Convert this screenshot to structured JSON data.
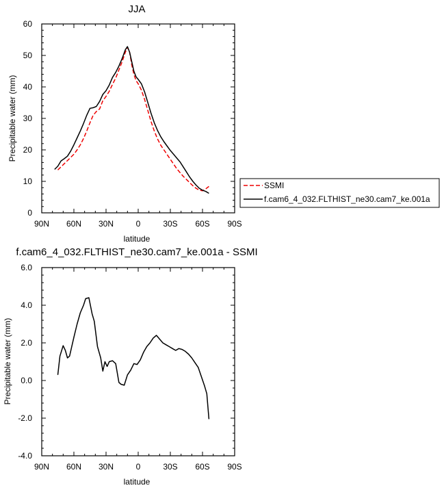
{
  "chart_data": [
    {
      "type": "line",
      "title": "JJA",
      "xlabel": "latitude",
      "ylabel": "Precipitable water (mm)",
      "xlim": [
        -90,
        90
      ],
      "ylim": [
        0,
        60
      ],
      "xticks": [
        {
          "v": -90,
          "label": "90N"
        },
        {
          "v": -60,
          "label": "60N"
        },
        {
          "v": -30,
          "label": "30N"
        },
        {
          "v": 0,
          "label": "0"
        },
        {
          "v": 30,
          "label": "30S"
        },
        {
          "v": 60,
          "label": "60S"
        },
        {
          "v": 90,
          "label": "90S"
        }
      ],
      "yticks": [
        {
          "v": 0,
          "label": "0"
        },
        {
          "v": 10,
          "label": "10"
        },
        {
          "v": 20,
          "label": "20"
        },
        {
          "v": 30,
          "label": "30"
        },
        {
          "v": 40,
          "label": "40"
        },
        {
          "v": 50,
          "label": "50"
        },
        {
          "v": 60,
          "label": "60"
        }
      ],
      "legend_position": "outside-right",
      "series": [
        {
          "name": "SSMI",
          "color": "#ee0000",
          "dash": true,
          "points": [
            [
              -75,
              13.6
            ],
            [
              -72,
              14.6
            ],
            [
              -69,
              15.6
            ],
            [
              -66,
              16.6
            ],
            [
              -63,
              17.6
            ],
            [
              -60,
              18.6
            ],
            [
              -57,
              20.0
            ],
            [
              -54,
              21.6
            ],
            [
              -51,
              23.6
            ],
            [
              -48,
              26.0
            ],
            [
              -45,
              28.6
            ],
            [
              -42,
              31.0
            ],
            [
              -39,
              32.2
            ],
            [
              -36,
              33.0
            ],
            [
              -33,
              35.6
            ],
            [
              -30,
              37.0
            ],
            [
              -27,
              38.6
            ],
            [
              -24,
              40.8
            ],
            [
              -21,
              42.8
            ],
            [
              -18,
              45.4
            ],
            [
              -15,
              48.0
            ],
            [
              -12,
              51.0
            ],
            [
              -10,
              52.6
            ],
            [
              -8,
              51.0
            ],
            [
              -6,
              47.0
            ],
            [
              -4,
              44.0
            ],
            [
              -2,
              42.0
            ],
            [
              0,
              41.0
            ],
            [
              3,
              39.0
            ],
            [
              6,
              36.0
            ],
            [
              9,
              32.5
            ],
            [
              12,
              29.0
            ],
            [
              15,
              26.0
            ],
            [
              18,
              23.5
            ],
            [
              21,
              21.5
            ],
            [
              24,
              20.0
            ],
            [
              27,
              18.5
            ],
            [
              30,
              17.0
            ],
            [
              33,
              15.5
            ],
            [
              36,
              14.0
            ],
            [
              39,
              12.8
            ],
            [
              42,
              11.6
            ],
            [
              45,
              10.6
            ],
            [
              48,
              9.6
            ],
            [
              51,
              8.6
            ],
            [
              54,
              7.8
            ],
            [
              57,
              7.2
            ],
            [
              60,
              7.0
            ],
            [
              63,
              7.6
            ],
            [
              66,
              8.4
            ]
          ]
        },
        {
          "name": "f.cam6_4_032.FLTHIST_ne30.cam7_ke.001a",
          "color": "#000000",
          "dash": false,
          "points": [
            [
              -78,
              13.8
            ],
            [
              -75,
              14.8
            ],
            [
              -72,
              16.5
            ],
            [
              -69,
              17.2
            ],
            [
              -66,
              18.0
            ],
            [
              -63,
              19.6
            ],
            [
              -60,
              21.6
            ],
            [
              -57,
              23.8
            ],
            [
              -54,
              26.0
            ],
            [
              -51,
              28.4
            ],
            [
              -48,
              31.0
            ],
            [
              -45,
              33.2
            ],
            [
              -42,
              33.4
            ],
            [
              -39,
              33.8
            ],
            [
              -36,
              35.4
            ],
            [
              -33,
              37.6
            ],
            [
              -30,
              38.8
            ],
            [
              -27,
              40.6
            ],
            [
              -24,
              43.0
            ],
            [
              -21,
              44.6
            ],
            [
              -18,
              46.6
            ],
            [
              -15,
              49.0
            ],
            [
              -12,
              51.8
            ],
            [
              -10,
              52.8
            ],
            [
              -8,
              51.0
            ],
            [
              -6,
              48.0
            ],
            [
              -4,
              45.0
            ],
            [
              -2,
              43.2
            ],
            [
              0,
              42.4
            ],
            [
              3,
              41.0
            ],
            [
              6,
              38.4
            ],
            [
              9,
              35.0
            ],
            [
              12,
              31.6
            ],
            [
              15,
              28.6
            ],
            [
              18,
              26.2
            ],
            [
              21,
              24.2
            ],
            [
              24,
              22.6
            ],
            [
              27,
              21.2
            ],
            [
              30,
              19.8
            ],
            [
              33,
              18.6
            ],
            [
              36,
              17.4
            ],
            [
              39,
              16.2
            ],
            [
              42,
              14.6
            ],
            [
              45,
              13.0
            ],
            [
              48,
              11.4
            ],
            [
              51,
              10.0
            ],
            [
              54,
              8.8
            ],
            [
              57,
              7.8
            ],
            [
              60,
              7.2
            ],
            [
              63,
              6.8
            ],
            [
              66,
              6.2
            ]
          ]
        }
      ]
    },
    {
      "type": "line",
      "title": "f.cam6_4_032.FLTHIST_ne30.cam7_ke.001a - SSMI",
      "xlabel": "latitude",
      "ylabel": "Precipitable water (mm)",
      "xlim": [
        -90,
        90
      ],
      "ylim": [
        -4,
        6
      ],
      "xticks": [
        {
          "v": -90,
          "label": "90N"
        },
        {
          "v": -60,
          "label": "60N"
        },
        {
          "v": -30,
          "label": "30N"
        },
        {
          "v": 0,
          "label": "0"
        },
        {
          "v": 30,
          "label": "30S"
        },
        {
          "v": 60,
          "label": "60S"
        },
        {
          "v": 90,
          "label": "90S"
        }
      ],
      "yticks": [
        {
          "v": -4,
          "label": "-4.0"
        },
        {
          "v": -2,
          "label": "-2.0"
        },
        {
          "v": 0,
          "label": "0.0"
        },
        {
          "v": 2,
          "label": "2.0"
        },
        {
          "v": 4,
          "label": "4.0"
        },
        {
          "v": 6,
          "label": "6.0"
        }
      ],
      "series": [
        {
          "color": "#000000",
          "dash": false,
          "points": [
            [
              -75,
              0.3
            ],
            [
              -73,
              1.3
            ],
            [
              -70,
              1.85
            ],
            [
              -68,
              1.6
            ],
            [
              -66,
              1.2
            ],
            [
              -64,
              1.3
            ],
            [
              -60,
              2.3
            ],
            [
              -57,
              3.0
            ],
            [
              -54,
              3.6
            ],
            [
              -51,
              4.0
            ],
            [
              -49,
              4.35
            ],
            [
              -46,
              4.4
            ],
            [
              -43,
              3.55
            ],
            [
              -41,
              3.15
            ],
            [
              -38,
              1.8
            ],
            [
              -35,
              1.2
            ],
            [
              -33,
              0.5
            ],
            [
              -31,
              1.0
            ],
            [
              -29,
              0.75
            ],
            [
              -27,
              1.0
            ],
            [
              -24,
              1.05
            ],
            [
              -21,
              0.9
            ],
            [
              -18,
              -0.1
            ],
            [
              -16,
              -0.2
            ],
            [
              -13,
              -0.25
            ],
            [
              -10,
              0.3
            ],
            [
              -7,
              0.55
            ],
            [
              -4,
              0.9
            ],
            [
              -1,
              0.85
            ],
            [
              2,
              1.1
            ],
            [
              5,
              1.5
            ],
            [
              8,
              1.8
            ],
            [
              11,
              2.0
            ],
            [
              14,
              2.25
            ],
            [
              17,
              2.4
            ],
            [
              20,
              2.2
            ],
            [
              23,
              2.0
            ],
            [
              26,
              1.9
            ],
            [
              29,
              1.8
            ],
            [
              32,
              1.7
            ],
            [
              35,
              1.6
            ],
            [
              38,
              1.7
            ],
            [
              41,
              1.65
            ],
            [
              44,
              1.55
            ],
            [
              47,
              1.4
            ],
            [
              50,
              1.2
            ],
            [
              53,
              0.95
            ],
            [
              56,
              0.7
            ],
            [
              59,
              0.2
            ],
            [
              62,
              -0.3
            ],
            [
              64,
              -0.7
            ],
            [
              66,
              -2.05
            ]
          ]
        }
      ]
    }
  ]
}
